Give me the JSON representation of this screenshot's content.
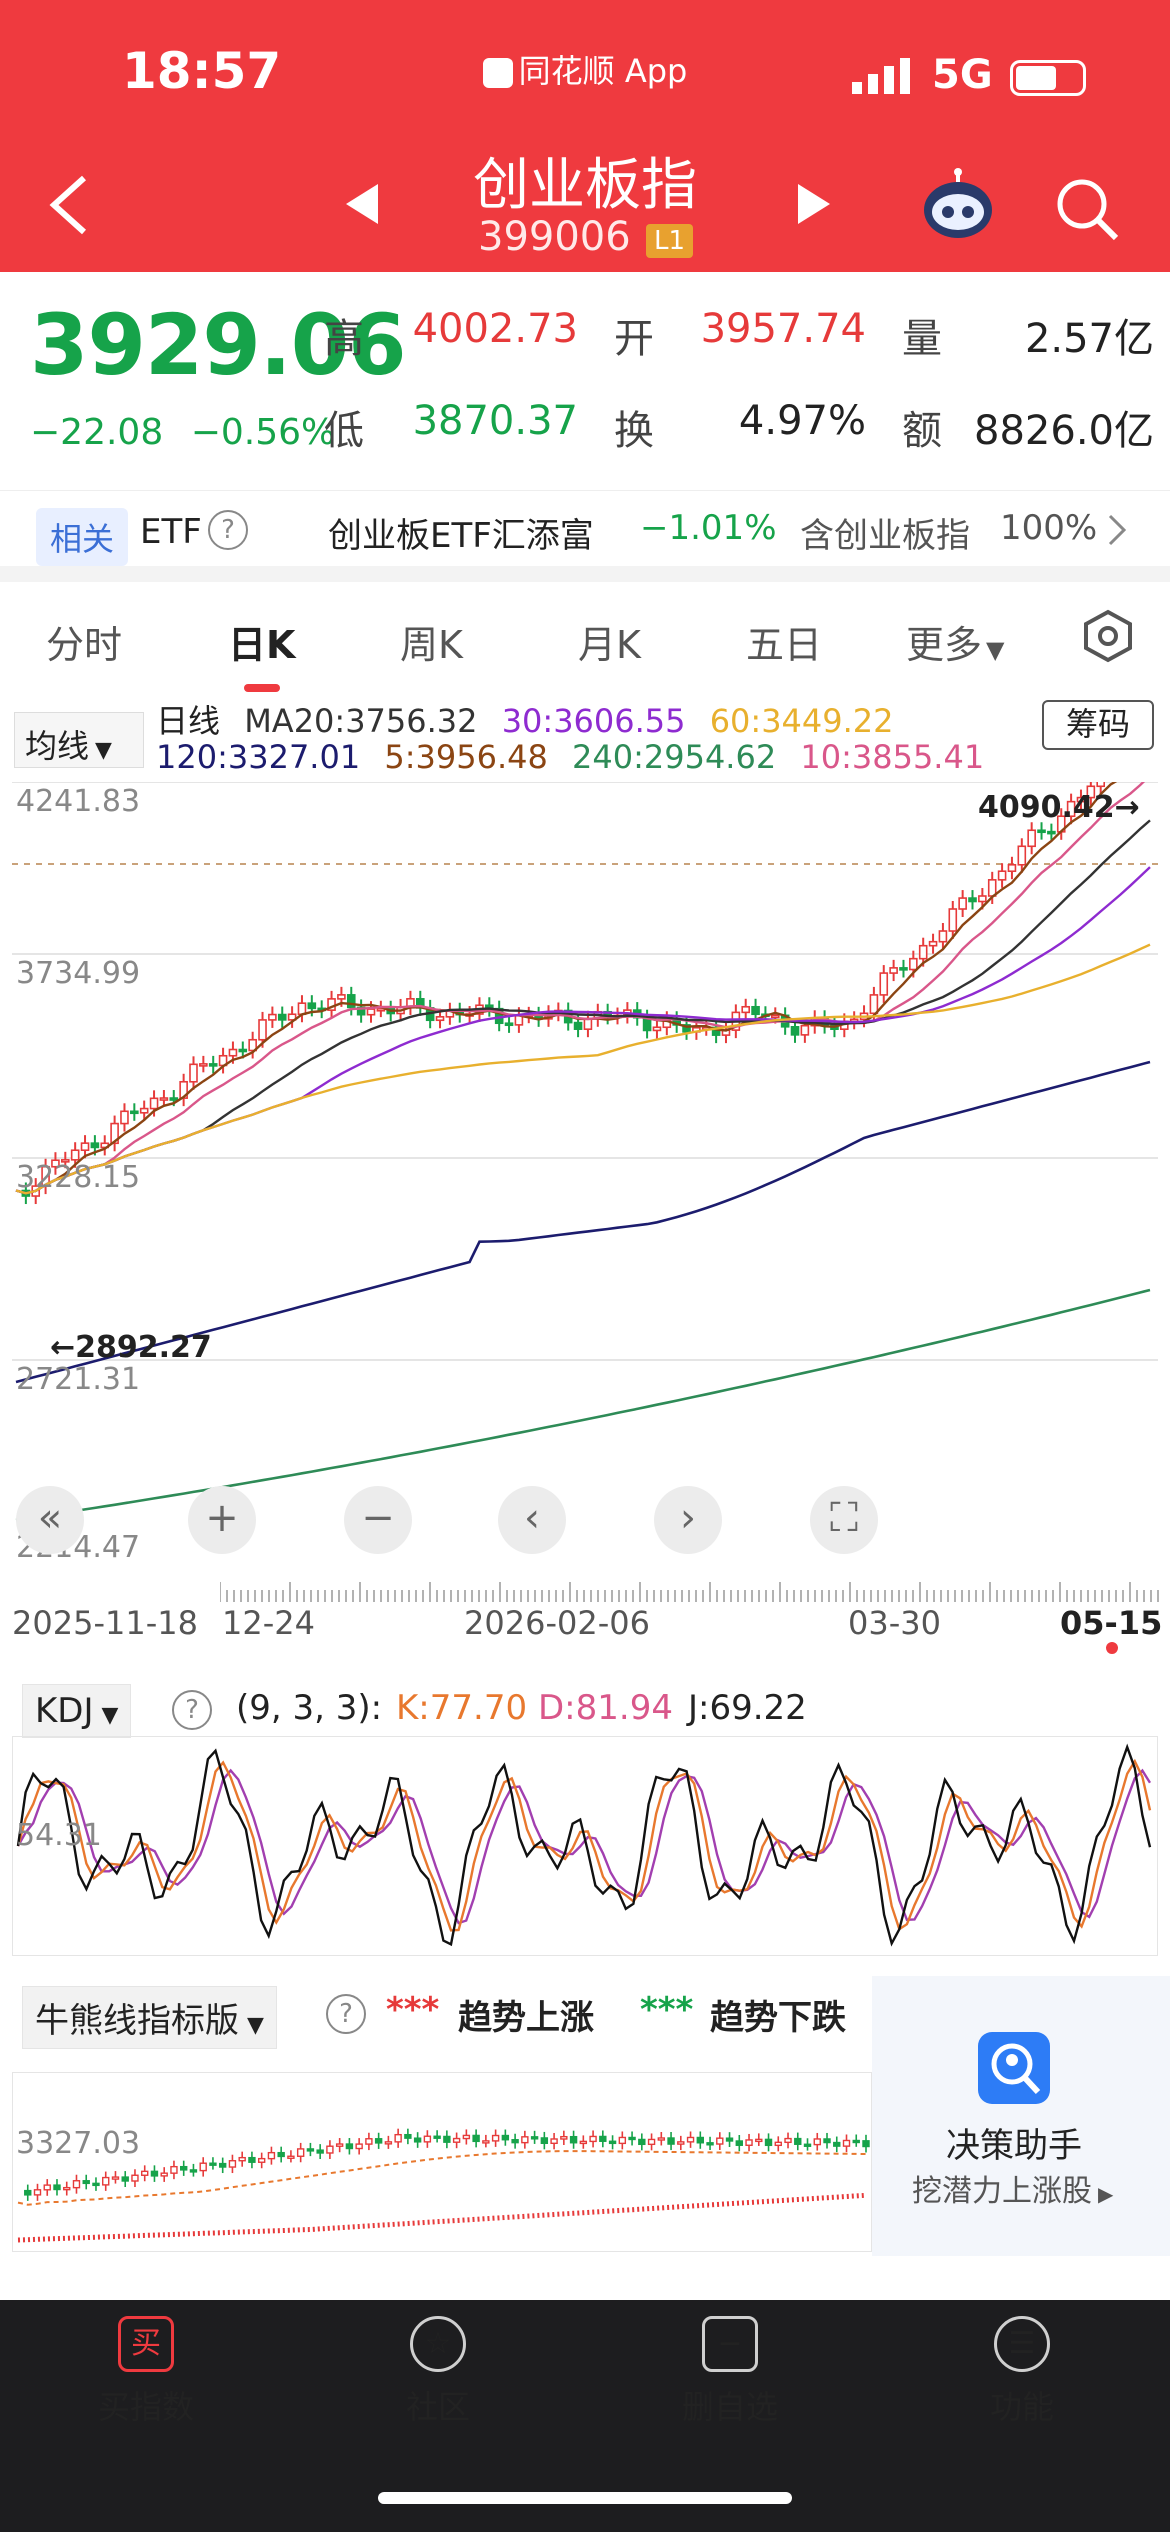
{
  "status_bar": {
    "time": "18:57",
    "app_name": "同花顺 App",
    "network": "5G"
  },
  "header": {
    "title": "创业板指",
    "code": "399006",
    "level_badge": "L1"
  },
  "quote": {
    "price": "3929.06",
    "change": "−22.08",
    "change_pct": "−0.56%",
    "high_label": "高",
    "high": "4002.73",
    "open_label": "开",
    "open": "3957.74",
    "volume_label": "量",
    "volume": "2.57亿",
    "low_label": "低",
    "low": "3870.37",
    "turnover_label": "换",
    "turnover": "4.97%",
    "amount_label": "额",
    "amount": "8826.0亿"
  },
  "etf_row": {
    "related_tag": "相关",
    "etf_label": "ETF",
    "fund_name": "创业板ETF汇添富",
    "fund_change": "−1.01%",
    "holding_text": "含创业板指",
    "holding_pct": "100%"
  },
  "tabs": [
    "分时",
    "日K",
    "周K",
    "月K",
    "五日",
    "更多"
  ],
  "ma_panel": {
    "avg_button": "均线",
    "period": "日线",
    "ma20": "MA20:3756.32",
    "ma30": "30:3606.55",
    "ma60": "60:3449.22",
    "ma120": "120:3327.01",
    "ma5": "5:3956.48",
    "ma240": "240:2954.62",
    "ma10": "10:3855.41",
    "chip_button": "筹码"
  },
  "price_axis": [
    "4241.83",
    "3734.99",
    "3228.15",
    "2721.31",
    "2214.47"
  ],
  "annotations": {
    "high_marker": "4090.42→",
    "low_marker": "←2892.27"
  },
  "date_axis": [
    "2025-11-18",
    "12-24",
    "2026-02-06",
    "03-30",
    "05-15"
  ],
  "kdj": {
    "dropdown": "KDJ",
    "params": "(9, 3, 3):",
    "k": "K:77.70",
    "d": "D:81.94",
    "j": "J:69.22",
    "axis_mid": "54.31"
  },
  "bull_bear": {
    "dropdown": "牛熊线指标版",
    "up_marks": "***",
    "up_label": "趋势上涨",
    "down_marks": "***",
    "down_label": "趋势下跌",
    "axis_value": "3327.03"
  },
  "helper": {
    "title": "决策助手",
    "subtitle": "挖潜力上涨股"
  },
  "tabbar": [
    {
      "label": "买指数",
      "icon": "买"
    },
    {
      "label": "社区",
      "icon": "☆"
    },
    {
      "label": "删自选",
      "icon": "−"
    },
    {
      "label": "功能",
      "icon": "☰"
    }
  ],
  "colors": {
    "header_red": "#ef3a3f",
    "up_red": "#e63a3a",
    "down_green": "#16a34a",
    "ma5": "#8b4513",
    "ma10": "#d9578a",
    "ma20": "#333333",
    "ma30": "#8e2bd0",
    "ma60": "#e8b02e",
    "ma120": "#1c1c6e",
    "ma240": "#2e8b57"
  }
}
